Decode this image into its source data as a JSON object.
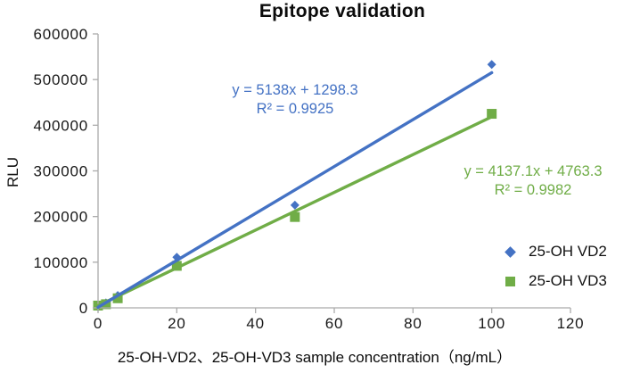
{
  "chart_data": {
    "type": "scatter",
    "title": "Epitope validation",
    "grid": false,
    "legend_position": "right",
    "x_axis": {
      "label": "25-OH-VD2、25-OH-VD3 sample concentration（ng/mL）",
      "min": 0,
      "max": 120,
      "ticks": [
        0,
        20,
        40,
        60,
        80,
        100,
        120
      ]
    },
    "y_axis": {
      "label": "RLU",
      "min": 0,
      "max": 600000,
      "ticks": [
        0,
        100000,
        200000,
        300000,
        400000,
        500000,
        600000
      ]
    },
    "axis_color": "#ababab",
    "series": [
      {
        "name": "25-OH VD2",
        "color": "#4472C4",
        "marker": "diamond",
        "points": [
          {
            "x": 0,
            "y": 2000
          },
          {
            "x": 2,
            "y": 11000
          },
          {
            "x": 5,
            "y": 27000
          },
          {
            "x": 20,
            "y": 111000
          },
          {
            "x": 50,
            "y": 225000
          },
          {
            "x": 100,
            "y": 533000
          }
        ],
        "trendline": {
          "slope": 5138,
          "intercept": 1298.3,
          "x_start": 0,
          "x_end": 100,
          "equation": "y = 5138x + 1298.3",
          "r_squared": "R² = 0.9925"
        }
      },
      {
        "name": "25-OH VD3",
        "color": "#70AD47",
        "marker": "square",
        "points": [
          {
            "x": 0,
            "y": 5000
          },
          {
            "x": 2,
            "y": 8000
          },
          {
            "x": 5,
            "y": 21000
          },
          {
            "x": 20,
            "y": 92000
          },
          {
            "x": 50,
            "y": 199000
          },
          {
            "x": 100,
            "y": 425000
          }
        ],
        "trendline": {
          "slope": 4137.1,
          "intercept": 4763.3,
          "x_start": 0,
          "x_end": 100,
          "equation": "y = 4137.1x + 4763.3",
          "r_squared": "R² = 0.9982"
        }
      }
    ]
  }
}
